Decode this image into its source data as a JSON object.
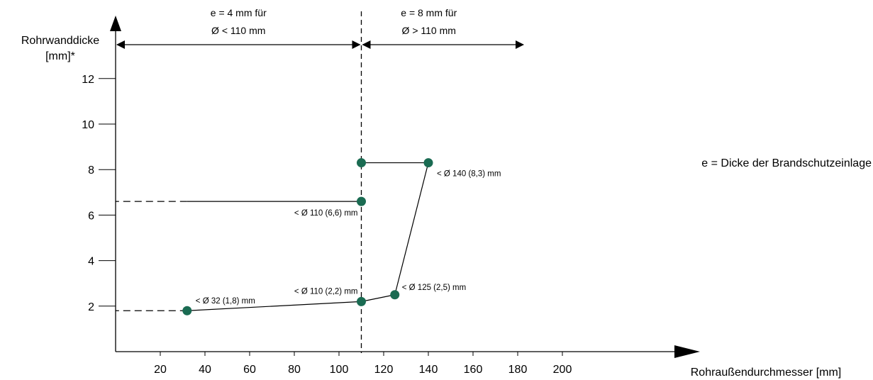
{
  "chart_data": {
    "type": "line",
    "xlabel": "Rohraußendurchmesser [mm]",
    "ylabel_line1": "Rohrwanddicke",
    "ylabel_line2": "[mm]*",
    "xlim": [
      0,
      245
    ],
    "ylim": [
      0,
      14.5
    ],
    "x_ticks": [
      20,
      40,
      60,
      80,
      100,
      120,
      140,
      160,
      180,
      200
    ],
    "y_ticks": [
      2,
      4,
      6,
      8,
      10,
      12
    ],
    "points": [
      {
        "x": 32,
        "y": 1.8,
        "label": "< Ø 32 (1,8) mm",
        "label_pos": "above"
      },
      {
        "x": 110,
        "y": 2.2,
        "label": "< Ø 110 (2,2) mm",
        "label_pos": "above-left"
      },
      {
        "x": 110,
        "y": 6.6,
        "label": "< Ø 110 (6,6) mm",
        "label_pos": "below-left"
      },
      {
        "x": 110,
        "y": 8.3,
        "label": "",
        "label_pos": "none"
      },
      {
        "x": 125,
        "y": 2.5,
        "label": "< Ø 125 (2,5) mm",
        "label_pos": "right"
      },
      {
        "x": 140,
        "y": 8.3,
        "label": "< Ø 140 (8,3) mm",
        "label_pos": "below-right"
      }
    ],
    "segments": [
      {
        "from": [
          32,
          1.8
        ],
        "to": [
          110,
          2.2
        ],
        "style": "solid"
      },
      {
        "from": [
          110,
          2.2
        ],
        "to": [
          125,
          2.5
        ],
        "style": "solid"
      },
      {
        "from": [
          125,
          2.5
        ],
        "to": [
          140,
          8.3
        ],
        "style": "solid"
      },
      {
        "from": [
          140,
          8.3
        ],
        "to": [
          110,
          8.3
        ],
        "style": "solid"
      },
      {
        "from": [
          110,
          6.6
        ],
        "to": [
          32,
          6.6
        ],
        "style": "solid"
      },
      {
        "from": [
          32,
          6.6
        ],
        "to": [
          0,
          6.6
        ],
        "style": "dashed"
      },
      {
        "from": [
          32,
          1.8
        ],
        "to": [
          0,
          1.8
        ],
        "style": "dashed"
      }
    ],
    "divider_x": 110,
    "ranges": [
      {
        "from": 0,
        "to": 110,
        "line1": "e = 4 mm für",
        "line2": "Ø < 110 mm"
      },
      {
        "from": 110,
        "to": 180,
        "line1": "e = 8 mm für",
        "line2": "Ø > 110 mm"
      }
    ],
    "legend_text": "e = Dicke der Brandschutzeinlage",
    "colors": {
      "point": "#1a6b52",
      "line": "#000000"
    }
  }
}
